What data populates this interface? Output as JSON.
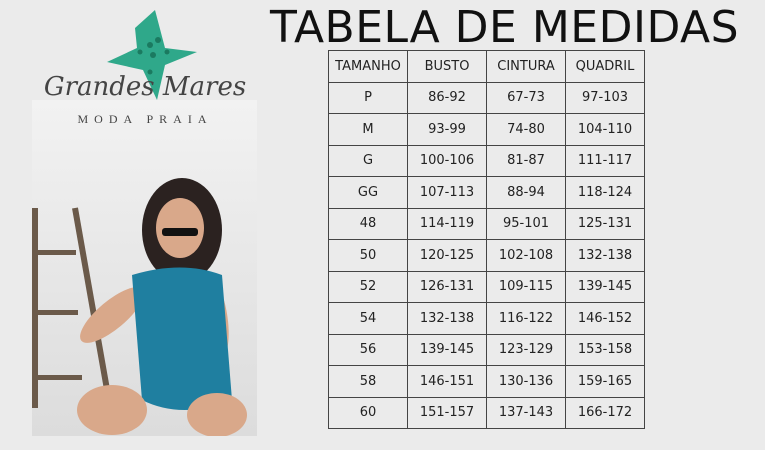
{
  "title": "TABELA DE MEDIDAS",
  "brand": {
    "name": "Grandes Mares",
    "tagline": "MODA PRAIA",
    "accent": "#2fa88a"
  },
  "table": {
    "headers": [
      "TAMANHO",
      "BUSTO",
      "CINTURA",
      "QUADRIL"
    ],
    "rows": [
      [
        "P",
        "86-92",
        "67-73",
        "97-103"
      ],
      [
        "M",
        "93-99",
        "74-80",
        "104-110"
      ],
      [
        "G",
        "100-106",
        "81-87",
        "111-117"
      ],
      [
        "GG",
        "107-113",
        "88-94",
        "118-124"
      ],
      [
        "48",
        "114-119",
        "95-101",
        "125-131"
      ],
      [
        "50",
        "120-125",
        "102-108",
        "132-138"
      ],
      [
        "52",
        "126-131",
        "109-115",
        "139-145"
      ],
      [
        "54",
        "132-138",
        "116-122",
        "146-152"
      ],
      [
        "56",
        "139-145",
        "123-129",
        "153-158"
      ],
      [
        "58",
        "146-151",
        "130-136",
        "159-165"
      ],
      [
        "60",
        "151-157",
        "137-143",
        "166-172"
      ]
    ]
  }
}
